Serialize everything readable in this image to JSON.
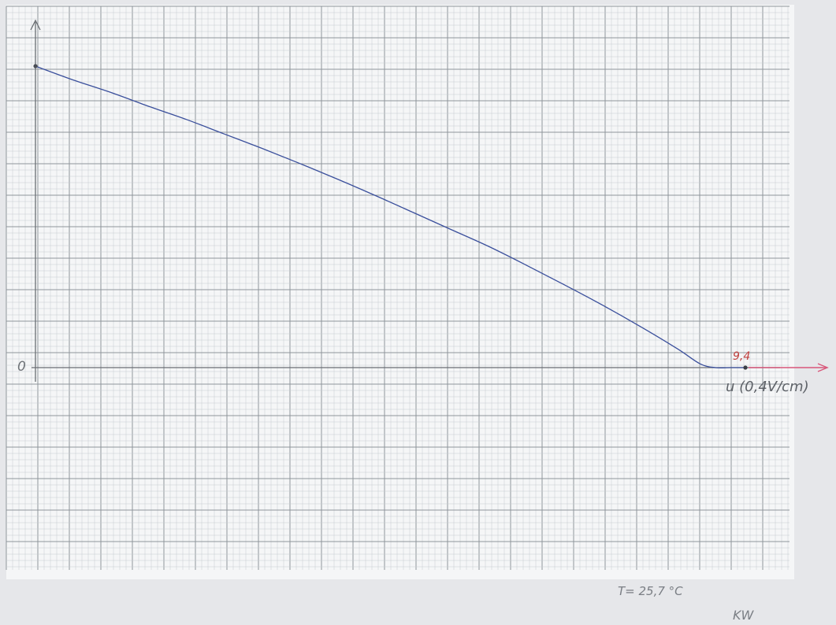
{
  "chart_data": {
    "type": "line",
    "title": "",
    "xlabel": "u (0,4V/cm)",
    "ylabel": "",
    "origin_label": "0",
    "x_end_label": "9,4",
    "grid": true,
    "series": [
      {
        "color": "#3a4f9c",
        "x": [
          0,
          0.5,
          1,
          1.5,
          2,
          2.5,
          3,
          3.5,
          4,
          4.5,
          5,
          5.5,
          6,
          6.5,
          7,
          7.5,
          8,
          8.5,
          8.8,
          9.0,
          9.2,
          9.4
        ],
        "y": [
          4.8,
          4.58,
          4.38,
          4.16,
          3.95,
          3.72,
          3.49,
          3.25,
          3.0,
          2.74,
          2.47,
          2.2,
          1.93,
          1.63,
          1.32,
          1.0,
          0.66,
          0.3,
          0.06,
          0.0,
          0.0,
          0.0
        ]
      }
    ],
    "xlim": [
      0,
      9.4
    ],
    "ylim": [
      0,
      4.8
    ]
  },
  "annotations": {
    "temperature": "T= 25,7 °C",
    "initials": "KW"
  },
  "colors": {
    "paper": "#f5f6f7",
    "grid_major": "#8f959b",
    "grid_minor": "#c6cbd0",
    "curve": "#3a4f9c",
    "axis": "#6a6e73",
    "arrow": "#d8577a"
  }
}
